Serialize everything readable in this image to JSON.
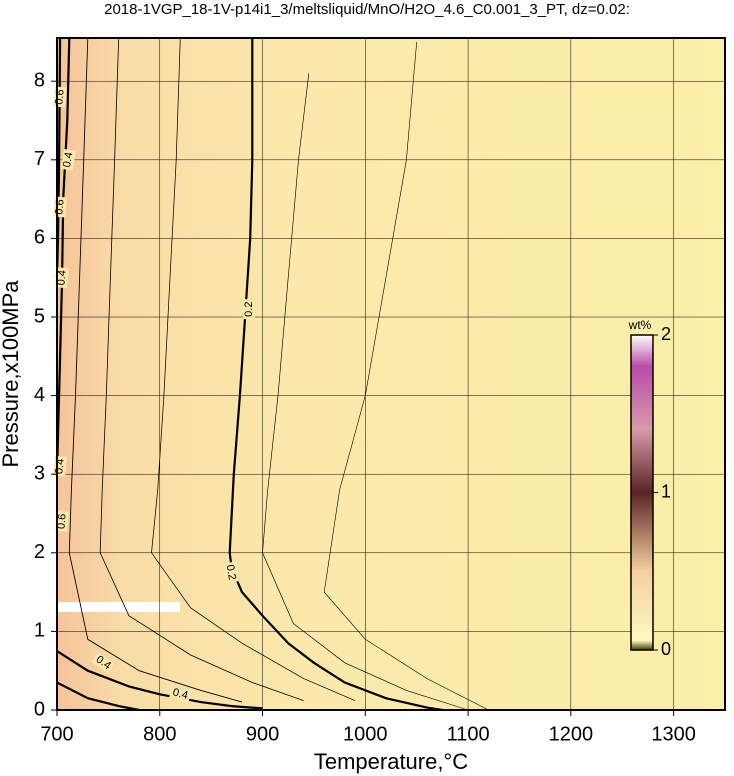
{
  "chart_data": {
    "type": "contour",
    "title": "2018-1VGP_18-1V-p14i1_3/meltsliquid/MnO/H2O_4.6_C0.001_3_PT, dz=0.02:",
    "xlabel": "Temperature,°C",
    "ylabel": "Pressure,x100MPa",
    "xlim": [
      700,
      1350
    ],
    "ylim": [
      0,
      8.55
    ],
    "xticks": [
      700,
      800,
      900,
      1000,
      1100,
      1200,
      1300
    ],
    "yticks": [
      0,
      1,
      2,
      3,
      4,
      5,
      6,
      7,
      8
    ],
    "grid": true,
    "colorbar": {
      "label": "wt%",
      "lim": [
        0,
        2
      ],
      "ticks": [
        0,
        1,
        2
      ]
    },
    "contours": [
      {
        "level": 0.2,
        "t": [
          890,
          890,
          888,
          883,
          878,
          872,
          868,
          870,
          880,
          900,
          925,
          950,
          980,
          1020,
          1060,
          1075
        ],
        "p": [
          8.55,
          7,
          6,
          5,
          4,
          3,
          2,
          1.8,
          1.5,
          1.2,
          0.85,
          0.6,
          0.35,
          0.15,
          0.03,
          0
        ]
      },
      {
        "level": 0.4,
        "t": [
          712,
          710,
          706,
          705,
          703,
          701,
          700,
          null,
          700,
          730,
          770,
          800,
          840,
          870,
          900
        ],
        "p": [
          8.55,
          7.5,
          6.5,
          5.5,
          4.5,
          3.5,
          3,
          null,
          0.75,
          0.5,
          0.3,
          0.2,
          0.1,
          0.05,
          0.02
        ]
      },
      {
        "level": 0.6,
        "t": [
          703,
          702,
          701,
          700,
          null,
          700,
          730,
          760,
          780
        ],
        "p": [
          8.55,
          7,
          6,
          5.5,
          null,
          0.35,
          0.15,
          0.05,
          0
        ]
      },
      {
        "level": 0.35,
        "t": [
          730,
          726,
          722,
          718,
          714,
          712,
          730,
          780,
          840,
          880
        ],
        "p": [
          8.55,
          7,
          5.5,
          4,
          2.8,
          2,
          0.9,
          0.5,
          0.25,
          0.1
        ]
      },
      {
        "level": 0.3,
        "t": [
          760,
          756,
          752,
          748,
          744,
          742,
          770,
          830,
          890,
          940
        ],
        "p": [
          8.55,
          7,
          5.5,
          4,
          2.8,
          2,
          1.2,
          0.7,
          0.35,
          0.12
        ]
      },
      {
        "level": 0.25,
        "t": [
          820,
          816,
          810,
          804,
          798,
          792,
          830,
          880,
          940,
          990
        ],
        "p": [
          8.55,
          7,
          5.5,
          4,
          2.8,
          2,
          1.3,
          0.85,
          0.4,
          0.12
        ]
      },
      {
        "level": 0.18,
        "t": [
          945,
          935,
          925,
          915,
          905,
          900,
          930,
          980,
          1040,
          1100
        ],
        "p": [
          8.1,
          7,
          5.5,
          4,
          2.8,
          2,
          1.1,
          0.6,
          0.25,
          0
        ]
      },
      {
        "level": 0.16,
        "t": [
          1050,
          1040,
          1020,
          1000,
          975,
          960,
          1000,
          1060,
          1120
        ],
        "p": [
          8.5,
          7,
          5.5,
          4,
          2.8,
          1.5,
          0.9,
          0.4,
          0
        ]
      }
    ],
    "labels": [
      {
        "c": 0,
        "t": 887,
        "p": 5.1,
        "rot": -90
      },
      {
        "c": 0,
        "t": 869,
        "p": 1.75,
        "rot": 80
      },
      {
        "c": 1,
        "t": 711,
        "p": 7.0,
        "rot": -80
      },
      {
        "c": 1,
        "t": 705,
        "p": 5.5,
        "rot": -85
      },
      {
        "c": 1,
        "t": 745,
        "p": 0.6,
        "rot": 35
      },
      {
        "c": 1,
        "t": 820,
        "p": 0.2,
        "rot": 15
      },
      {
        "c": 1,
        "t": 703,
        "p": 3.1,
        "rot": -85
      },
      {
        "c": 2,
        "t": 703,
        "p": 7.8,
        "rot": -85
      },
      {
        "c": 2,
        "t": 703,
        "p": 6.4,
        "rot": -85
      },
      {
        "c": 2,
        "t": 705,
        "p": 2.4,
        "rot": -85
      }
    ]
  }
}
